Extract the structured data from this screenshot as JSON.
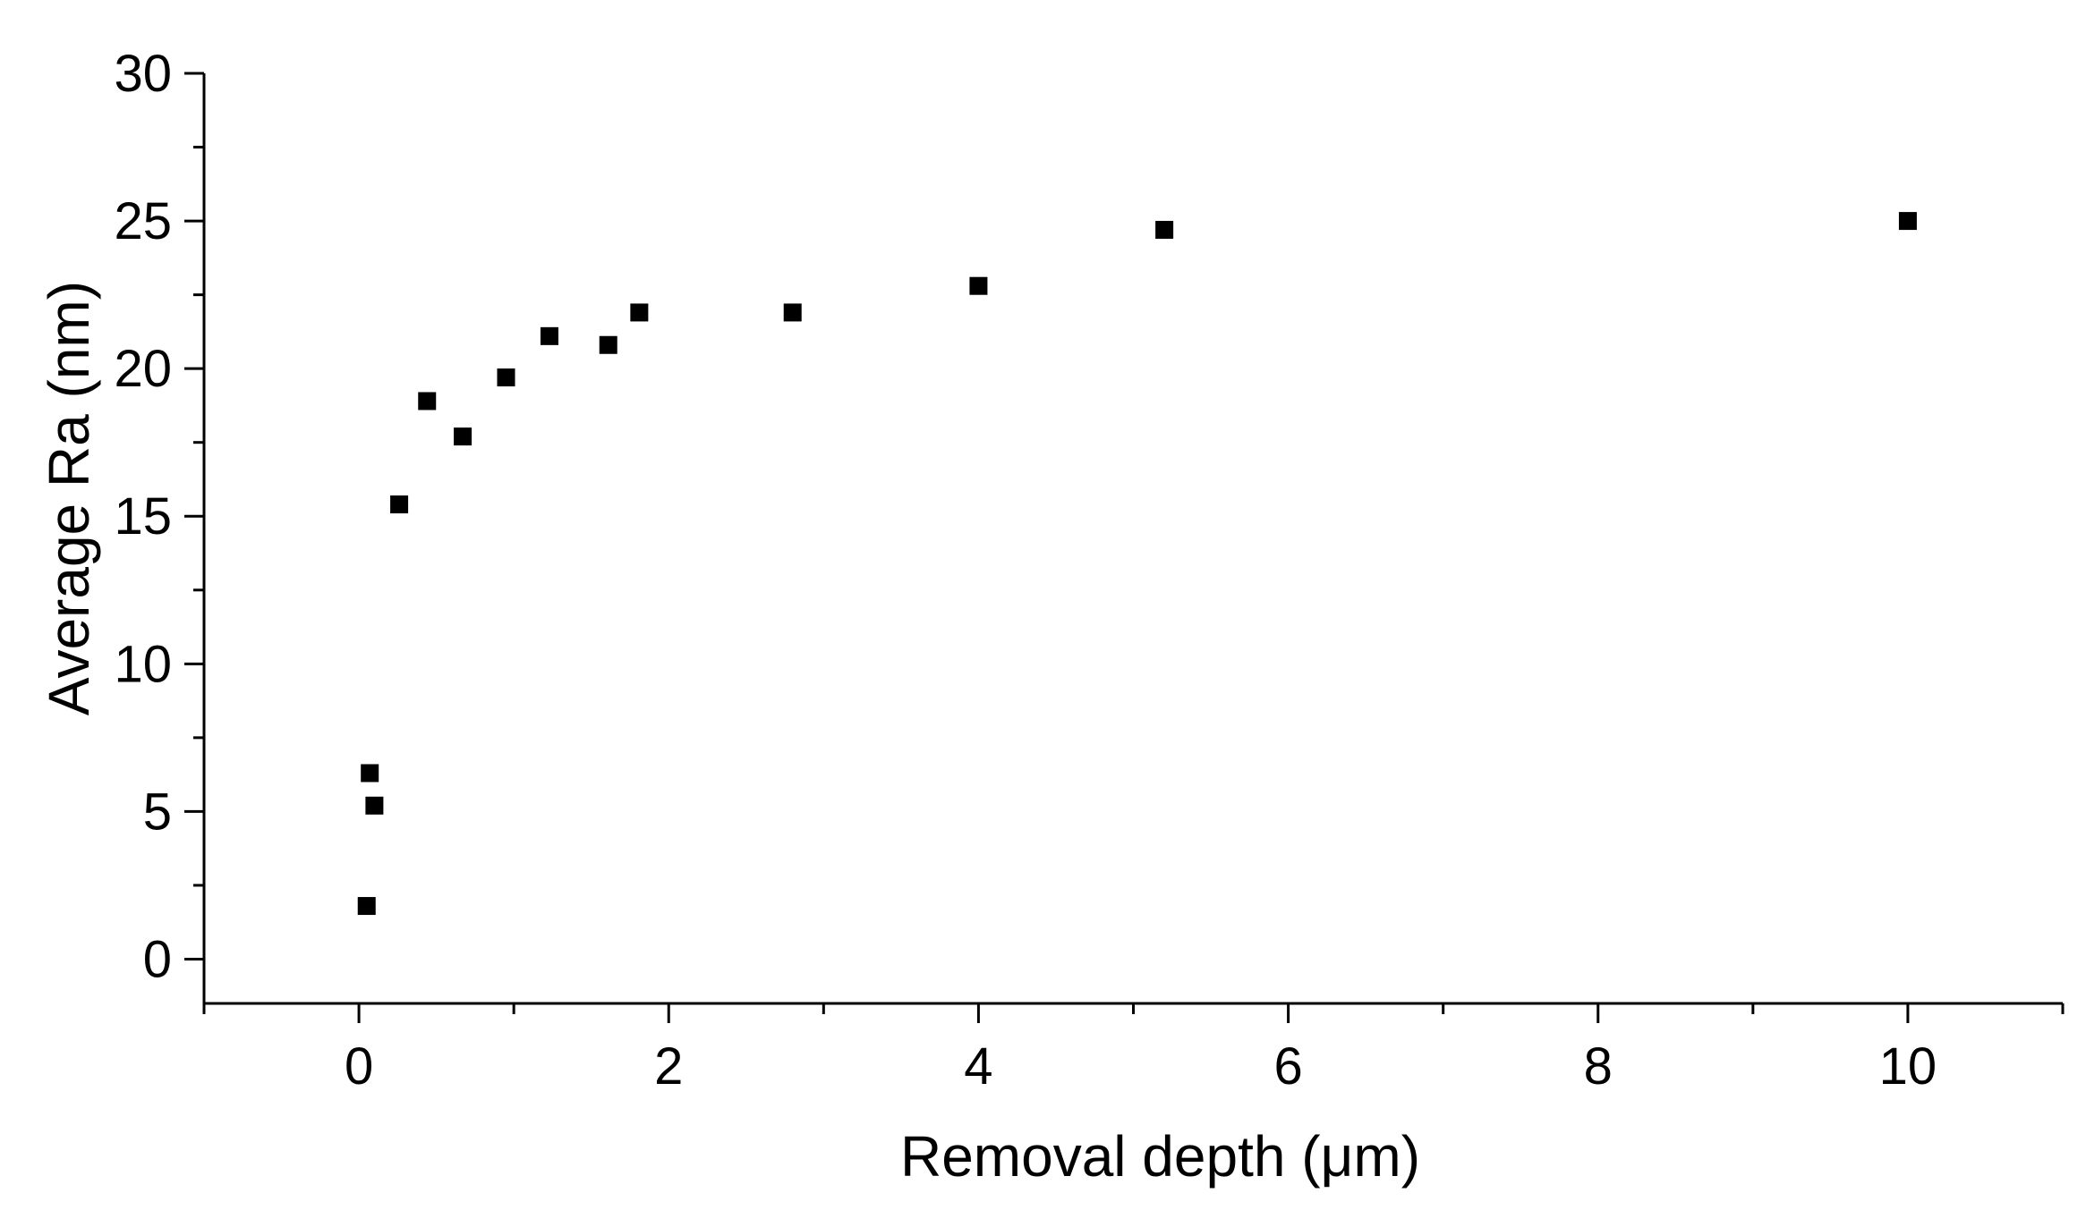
{
  "chart_data": {
    "type": "scatter",
    "title": "",
    "xlabel": "Removal depth (μm)",
    "ylabel": "Average Ra (nm)",
    "xlim": [
      -1,
      11
    ],
    "ylim": [
      -1.5,
      30
    ],
    "x_ticks": [
      0,
      2,
      4,
      6,
      8,
      10
    ],
    "y_ticks": [
      0,
      5,
      10,
      15,
      20,
      25,
      30
    ],
    "x_tick_labels": [
      "0",
      "2",
      "4",
      "6",
      "8",
      "10"
    ],
    "y_tick_labels": [
      "0",
      "5",
      "10",
      "15",
      "20",
      "25",
      "30"
    ],
    "grid": false,
    "legend": "none",
    "marker": "square",
    "marker_color": "#000000",
    "series": [
      {
        "points": [
          {
            "x": 0.05,
            "y": 1.8
          },
          {
            "x": 0.07,
            "y": 6.3
          },
          {
            "x": 0.1,
            "y": 5.2
          },
          {
            "x": 0.26,
            "y": 15.4
          },
          {
            "x": 0.44,
            "y": 18.9
          },
          {
            "x": 0.67,
            "y": 17.7
          },
          {
            "x": 0.95,
            "y": 19.7
          },
          {
            "x": 1.23,
            "y": 21.1
          },
          {
            "x": 1.61,
            "y": 20.8
          },
          {
            "x": 1.81,
            "y": 21.9
          },
          {
            "x": 2.8,
            "y": 21.9
          },
          {
            "x": 4.0,
            "y": 22.8
          },
          {
            "x": 5.2,
            "y": 24.7
          },
          {
            "x": 10.0,
            "y": 25.0
          }
        ]
      }
    ]
  }
}
